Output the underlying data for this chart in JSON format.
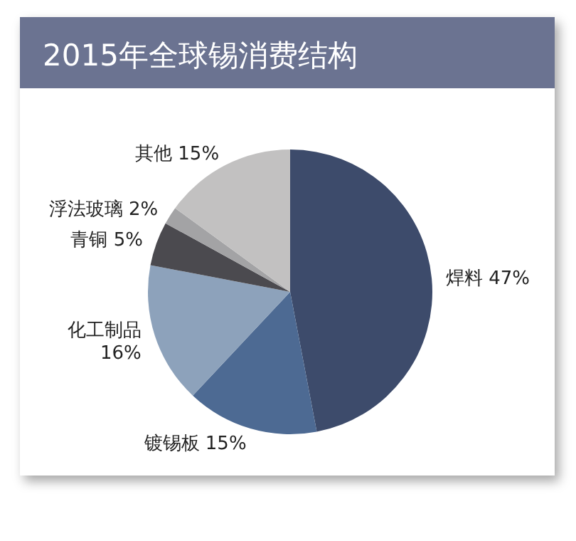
{
  "chart_data": {
    "type": "pie",
    "title": "2015年全球锡消费结构",
    "categories": [
      "焊料",
      "镀锡板",
      "化工制品",
      "青铜",
      "浮法玻璃",
      "其他"
    ],
    "values": [
      47,
      15,
      16,
      5,
      2,
      15
    ],
    "value_labels": [
      "47%",
      "15%",
      "16%",
      "5%",
      "2%",
      "15%"
    ],
    "colors": [
      "#3d4b6b",
      "#4d6a93",
      "#8da2bb",
      "#4b4a4f",
      "#a3a3a5",
      "#c2c1c1"
    ],
    "legend": false
  }
}
